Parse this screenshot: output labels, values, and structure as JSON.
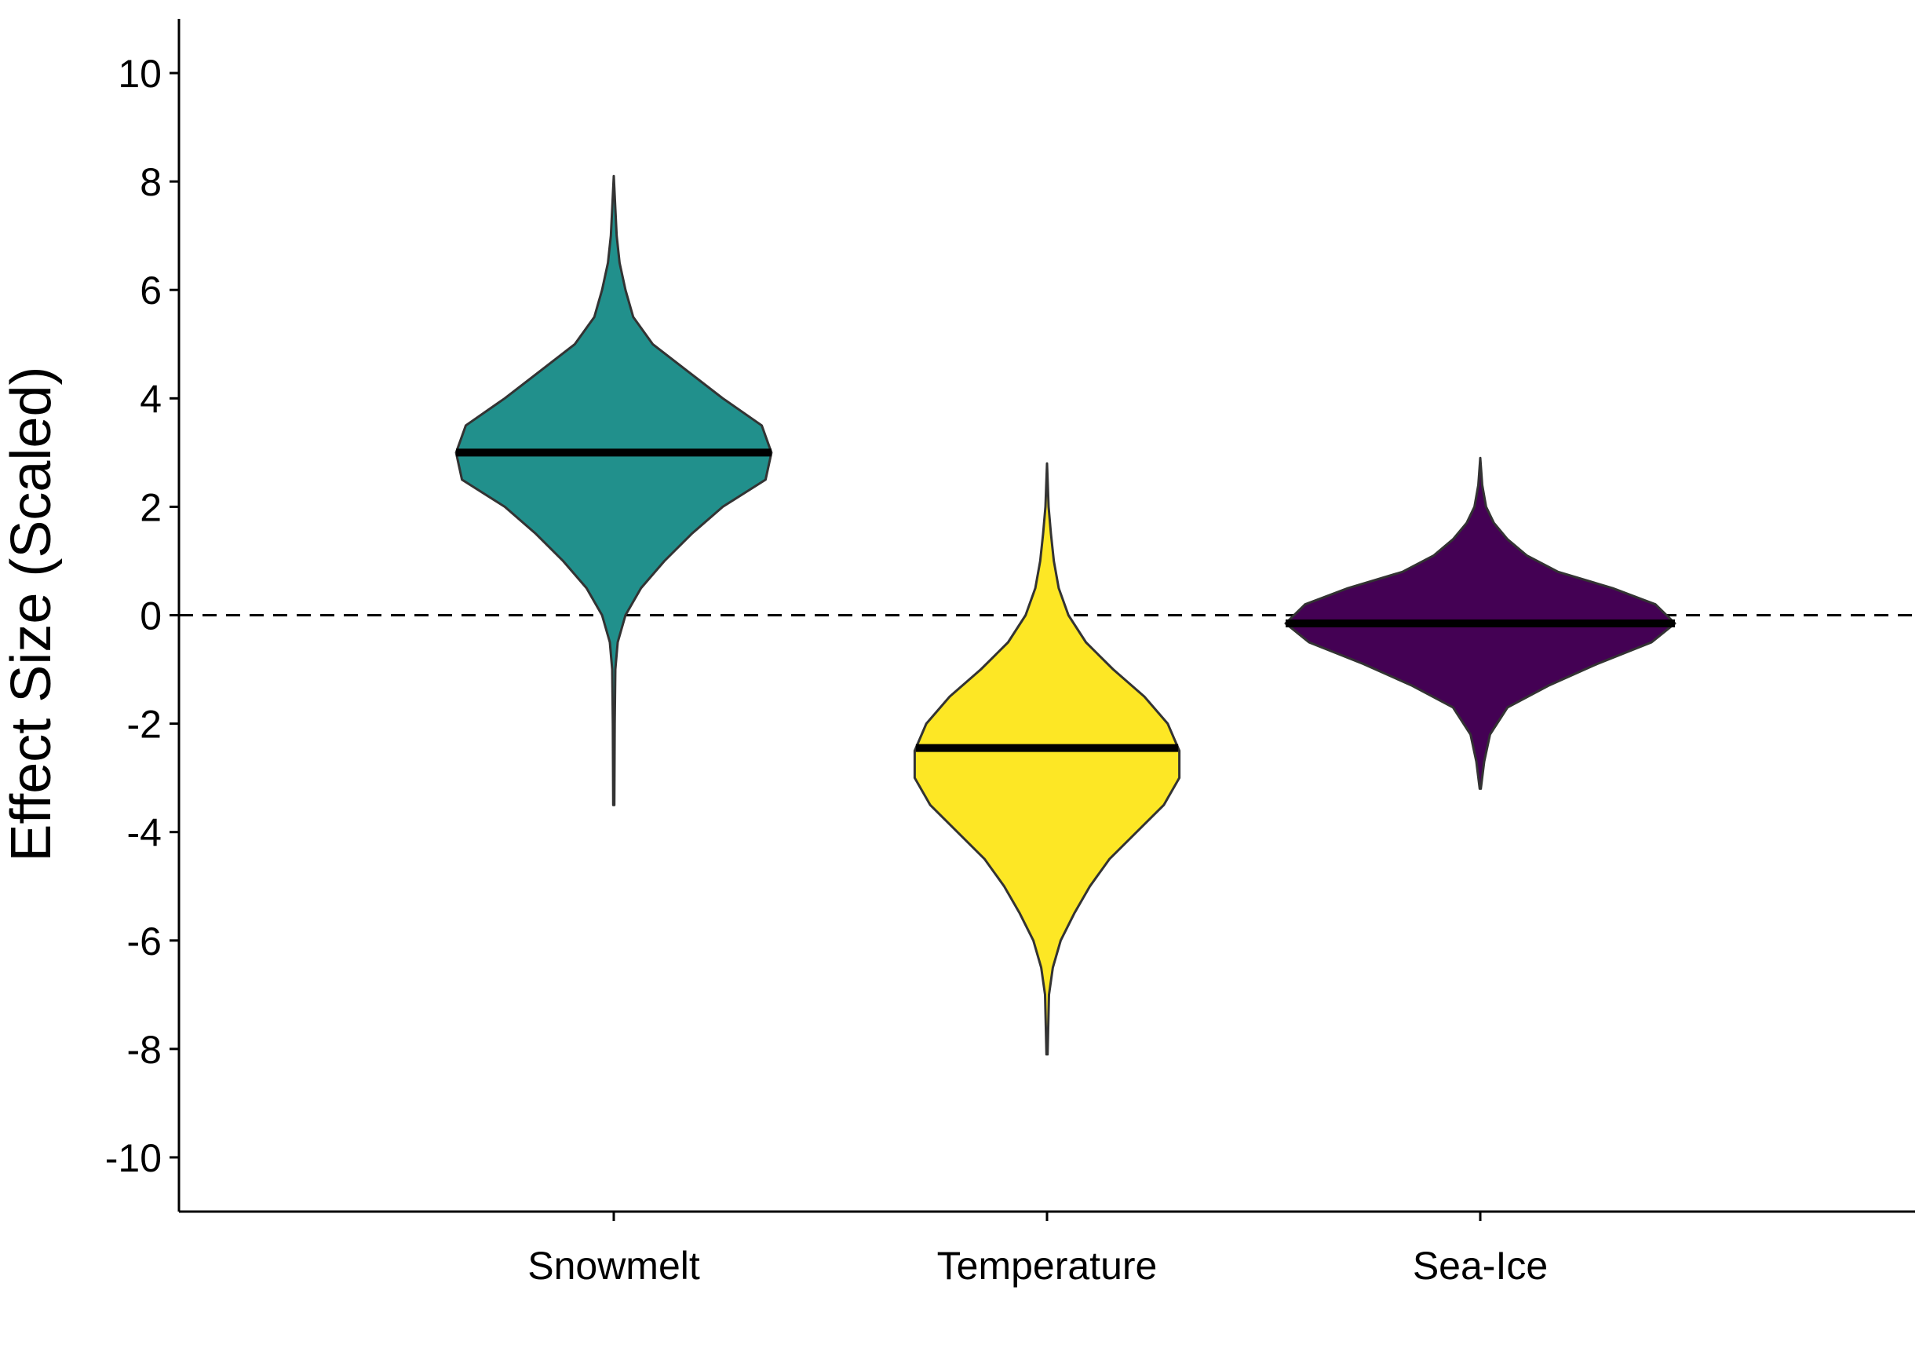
{
  "chart_data": {
    "type": "violin",
    "title": "",
    "xlabel": "",
    "ylabel": "Effect Size (Scaled)",
    "ylim": [
      -11,
      11
    ],
    "yticks": [
      10,
      8,
      6,
      4,
      2,
      0,
      -2,
      -4,
      -6,
      -8,
      -10
    ],
    "reference_line": {
      "y": 0,
      "style": "dashed"
    },
    "grid": false,
    "categories": [
      "Snowmelt",
      "Temperature",
      "Sea-Ice"
    ],
    "series": [
      {
        "category": "Snowmelt",
        "color": "#21908C",
        "center_value": 3.0,
        "min": -3.5,
        "max": 8.1,
        "density": [
          [
            -3.5,
            0.003
          ],
          [
            -2.0,
            0.005
          ],
          [
            -1.0,
            0.008
          ],
          [
            -0.5,
            0.02
          ],
          [
            0.0,
            0.06
          ],
          [
            0.5,
            0.14
          ],
          [
            1.0,
            0.26
          ],
          [
            1.5,
            0.4
          ],
          [
            2.0,
            0.56
          ],
          [
            2.5,
            0.78
          ],
          [
            3.0,
            0.81
          ],
          [
            3.5,
            0.76
          ],
          [
            4.0,
            0.56
          ],
          [
            4.5,
            0.38
          ],
          [
            5.0,
            0.2
          ],
          [
            5.5,
            0.1
          ],
          [
            6.0,
            0.06
          ],
          [
            6.5,
            0.03
          ],
          [
            7.0,
            0.015
          ],
          [
            7.5,
            0.008
          ],
          [
            8.1,
            0.0
          ]
        ]
      },
      {
        "category": "Temperature",
        "color": "#FDE725",
        "center_value": -2.45,
        "min": -8.1,
        "max": 2.8,
        "density": [
          [
            -8.1,
            0.003
          ],
          [
            -7.0,
            0.01
          ],
          [
            -6.5,
            0.03
          ],
          [
            -6.0,
            0.07
          ],
          [
            -5.5,
            0.14
          ],
          [
            -5.0,
            0.22
          ],
          [
            -4.5,
            0.32
          ],
          [
            -4.0,
            0.46
          ],
          [
            -3.5,
            0.6
          ],
          [
            -3.0,
            0.68
          ],
          [
            -2.5,
            0.68
          ],
          [
            -2.0,
            0.62
          ],
          [
            -1.5,
            0.5
          ],
          [
            -1.0,
            0.34
          ],
          [
            -0.5,
            0.2
          ],
          [
            0.0,
            0.11
          ],
          [
            0.5,
            0.06
          ],
          [
            1.0,
            0.035
          ],
          [
            1.5,
            0.02
          ],
          [
            2.0,
            0.008
          ],
          [
            2.8,
            0.0
          ]
        ]
      },
      {
        "category": "Sea-Ice",
        "color": "#440154",
        "center_value": -0.15,
        "min": -3.2,
        "max": 2.9,
        "density": [
          [
            -3.2,
            0.003
          ],
          [
            -2.7,
            0.02
          ],
          [
            -2.2,
            0.05
          ],
          [
            -1.7,
            0.14
          ],
          [
            -1.3,
            0.35
          ],
          [
            -0.9,
            0.6
          ],
          [
            -0.5,
            0.88
          ],
          [
            -0.15,
            1.0
          ],
          [
            0.2,
            0.9
          ],
          [
            0.5,
            0.68
          ],
          [
            0.8,
            0.4
          ],
          [
            1.1,
            0.24
          ],
          [
            1.4,
            0.14
          ],
          [
            1.7,
            0.07
          ],
          [
            2.0,
            0.03
          ],
          [
            2.4,
            0.01
          ],
          [
            2.9,
            0.0
          ]
        ]
      }
    ]
  }
}
